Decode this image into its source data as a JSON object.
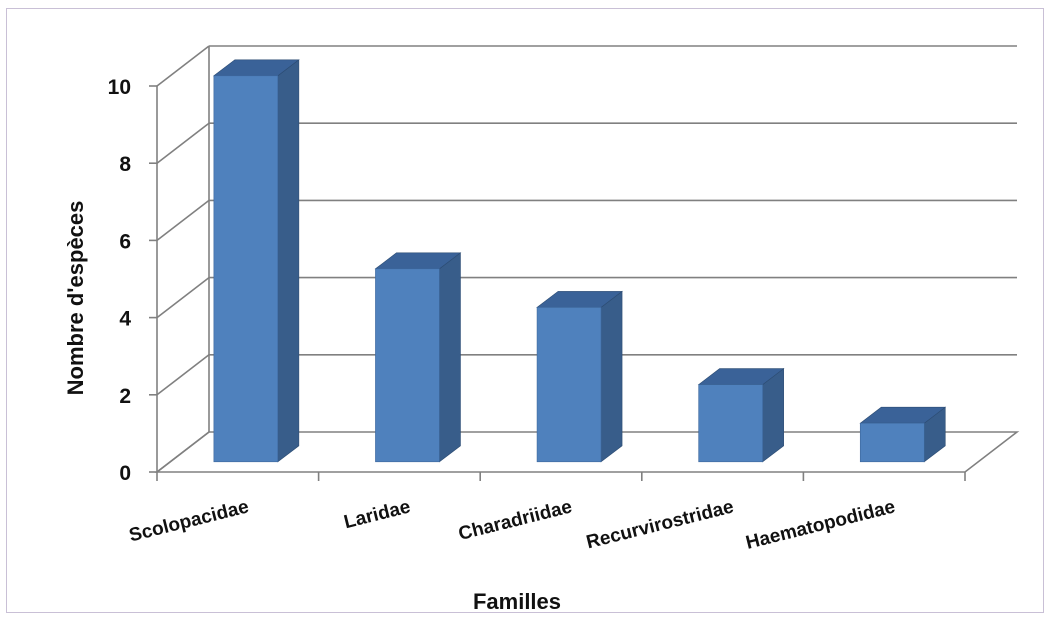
{
  "chart_data": {
    "type": "bar",
    "style": "3d-column",
    "categories": [
      "Scolopacidae",
      "Laridae",
      "Charadriidae",
      "Recurvirostridae",
      "Haematopodidae"
    ],
    "values": [
      10,
      5,
      4,
      2,
      1
    ],
    "xlabel": "Familles",
    "ylabel": "Nombre d'espèces",
    "ylim": [
      0,
      10
    ],
    "yticks": [
      0,
      2,
      4,
      6,
      8,
      10
    ],
    "grid": true,
    "legend": "none",
    "colors": {
      "bar_front": "#4f81bd",
      "bar_side": "#385d8a",
      "bar_top": "#3a6298",
      "grid": "#808080"
    }
  }
}
